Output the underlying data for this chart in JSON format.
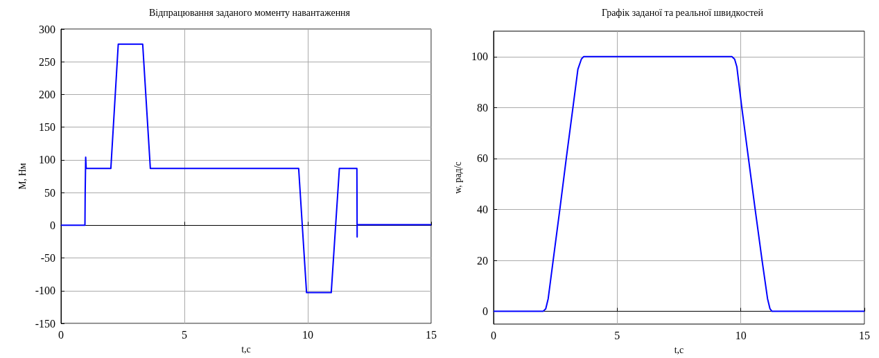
{
  "chart_data": [
    {
      "type": "line",
      "title": "Відпрацювання заданого моменту навантаження",
      "xlabel": "t,c",
      "ylabel": "M, Нм",
      "series": [
        {
          "color": "#0000ff",
          "x": [
            0,
            0.97,
            0.98,
            1.0,
            1.02,
            1.02,
            1.95,
            2.02,
            2.32,
            3.31,
            3.62,
            9.63,
            9.95,
            10.95,
            11.28,
            11.99,
            12.0,
            12.0,
            12.05,
            15
          ],
          "values": [
            0,
            0,
            50,
            104,
            87,
            87,
            87,
            87,
            277,
            277,
            87,
            87,
            -103,
            -103,
            87,
            87,
            -18,
            0,
            1,
            1
          ]
        }
      ],
      "xlim": [
        0,
        15
      ],
      "xticks": [
        0,
        5,
        10,
        15
      ],
      "ylim": [
        -150,
        300
      ],
      "yticks": [
        -150,
        -100,
        -50,
        0,
        50,
        100,
        150,
        200,
        250,
        300
      ],
      "grid": true,
      "marker": "none"
    },
    {
      "type": "line",
      "title": "Графік заданої та реальної швидкостей",
      "xlabel": "t,c",
      "ylabel": "w, рад/с",
      "series": [
        {
          "color": "#0000ff",
          "x": [
            0,
            2.0,
            2.11,
            2.21,
            2.41,
            2.68,
            2.94,
            3.21,
            3.41,
            3.55,
            3.64,
            9.64,
            9.75,
            9.84,
            10.04,
            10.31,
            10.58,
            10.86,
            11.08,
            11.18,
            11.26,
            15
          ],
          "values": [
            0,
            0,
            1,
            5,
            20,
            40,
            60,
            80,
            95,
            99,
            100,
            100,
            99,
            96,
            80,
            60,
            40,
            20,
            5,
            1,
            0,
            0
          ]
        }
      ],
      "xlim": [
        0,
        15
      ],
      "xticks": [
        0,
        5,
        10,
        15
      ],
      "ylim": [
        -5,
        110
      ],
      "yticks": [
        0,
        20,
        40,
        60,
        80,
        100
      ],
      "grid": true,
      "marker": "none"
    }
  ]
}
